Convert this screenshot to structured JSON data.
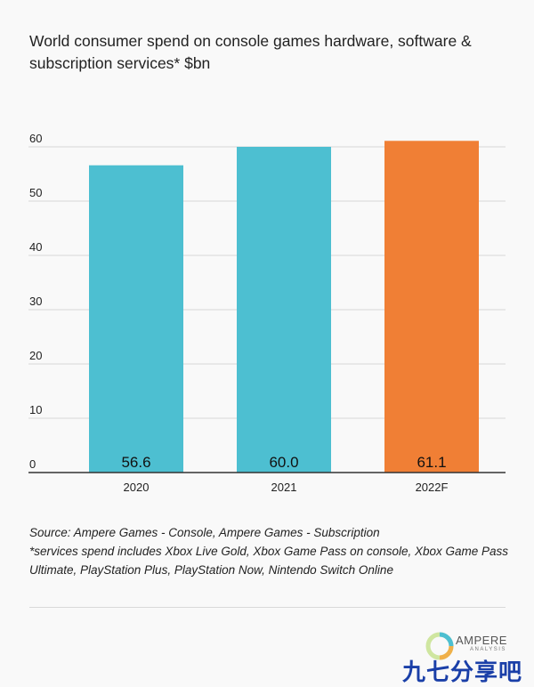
{
  "title": "World consumer spend on console games hardware, software & subscription services* $bn",
  "chart_data": {
    "type": "bar",
    "categories": [
      "2020",
      "2021",
      "2022F"
    ],
    "values": [
      56.6,
      60.0,
      61.1
    ],
    "value_labels": [
      "56.6",
      "60.0",
      "61.1"
    ],
    "bar_colors": [
      "#4dbfd1",
      "#4dbfd1",
      "#f07f35"
    ],
    "ylim": [
      0,
      60
    ],
    "yticks": [
      0,
      10,
      20,
      30,
      40,
      50,
      60
    ],
    "grid": true,
    "xlabel": "",
    "ylabel": ""
  },
  "footnote": {
    "source": "Source: Ampere Games - Console, Ampere Games - Subscription",
    "services_note": "*services spend includes Xbox Live Gold, Xbox Game Pass on console, Xbox Game Pass Ultimate, PlayStation Plus, PlayStation Now, Nintendo Switch Online"
  },
  "logo": {
    "name": "AMPERE",
    "sub": "ANALYSIS"
  },
  "watermark": "九七分享吧"
}
